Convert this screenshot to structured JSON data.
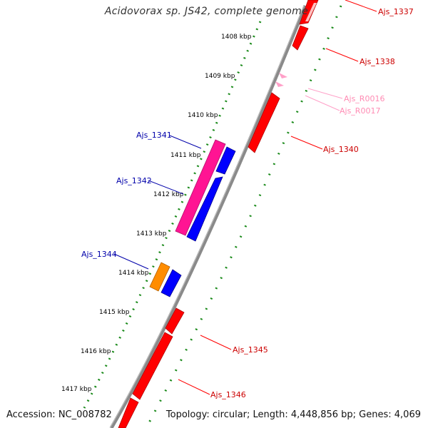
{
  "title": "Acidovorax sp. JS42, complete genome",
  "accession": "Accession: NC_008782",
  "topology": "Topology: circular; Length: 4,448,856 bp; Genes: 4,069",
  "ticks": [
    "1408 kbp",
    "1409 kbp",
    "1410 kbp",
    "1411 kbp",
    "1412 kbp",
    "1413 kbp",
    "1414 kbp",
    "1415 kbp",
    "1416 kbp",
    "1417 kbp"
  ],
  "genes": [
    {
      "name": "Ajs_1337",
      "strand": "minus",
      "color": "#ff0000"
    },
    {
      "name": "Ajs_1338",
      "strand": "minus",
      "color": "#ff0000"
    },
    {
      "name": "Ajs_R0016",
      "strand": "minus",
      "color": "#ffa0c8"
    },
    {
      "name": "Ajs_R0017",
      "strand": "minus",
      "color": "#ffa0c8"
    },
    {
      "name": "Ajs_1340",
      "strand": "minus",
      "color": "#ff0000"
    },
    {
      "name": "Ajs_1341",
      "strand": "plus",
      "color": "#ff1493"
    },
    {
      "name": "Ajs_1342",
      "strand": "plus",
      "color": "#0000ff"
    },
    {
      "name": "Ajs_1344",
      "strand": "plus",
      "color": "#ff8c00"
    },
    {
      "name": "Ajs_1345",
      "strand": "minus",
      "color": "#ff0000"
    },
    {
      "name": "Ajs_1346",
      "strand": "minus",
      "color": "#ff0000"
    }
  ]
}
